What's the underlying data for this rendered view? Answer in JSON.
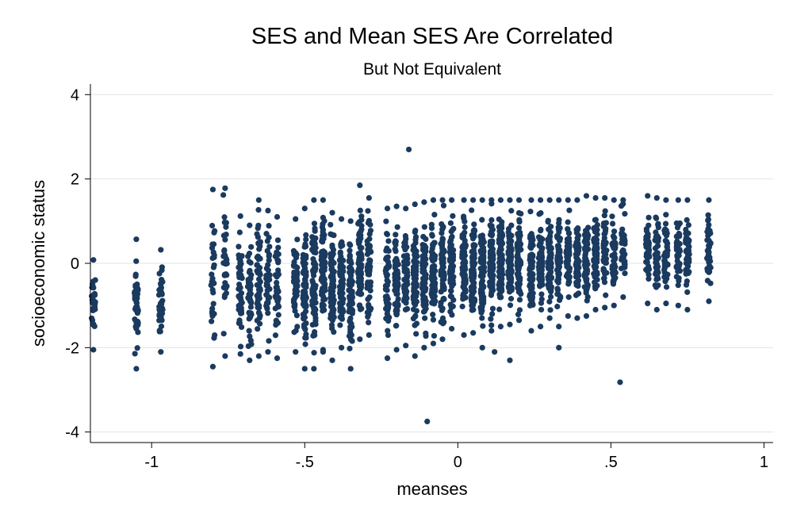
{
  "chart_data": {
    "type": "scatter",
    "title": "SES and Mean SES Are Correlated",
    "subtitle": "But Not Equivalent",
    "xlabel": "meanses",
    "ylabel": "socioeconomic status",
    "xlim": [
      -1.2,
      1.03
    ],
    "ylim": [
      -4.25,
      4.25
    ],
    "xticks": [
      -1,
      -0.5,
      0,
      0.5,
      1
    ],
    "xtick_labels": [
      "-1",
      "-.5",
      "0",
      ".5",
      "1"
    ],
    "yticks": [
      -4,
      -2,
      0,
      2,
      4
    ],
    "ytick_labels": [
      "-4",
      "-2",
      "0",
      "2",
      "4"
    ],
    "grid": "horizontal",
    "legend": "none",
    "marker_color": "#1a3a5f",
    "clusters": [
      {
        "x": -1.19,
        "ymin": -2.05,
        "ymax": 0.08,
        "n": 30
      },
      {
        "x": -1.05,
        "ymin": -2.5,
        "ymax": 0.57,
        "n": 40
      },
      {
        "x": -0.97,
        "ymin": -2.1,
        "ymax": 0.32,
        "n": 38
      },
      {
        "x": -0.8,
        "ymin": -2.45,
        "ymax": 1.75,
        "n": 30
      },
      {
        "x": -0.76,
        "ymin": -2.2,
        "ymax": 1.78,
        "n": 34
      },
      {
        "x": -0.71,
        "ymin": -2.15,
        "ymax": 1.12,
        "n": 45
      },
      {
        "x": -0.68,
        "ymin": -2.3,
        "ymax": 0.9,
        "n": 45
      },
      {
        "x": -0.65,
        "ymin": -2.2,
        "ymax": 1.5,
        "n": 48
      },
      {
        "x": -0.62,
        "ymin": -2.1,
        "ymax": 1.25,
        "n": 40
      },
      {
        "x": -0.59,
        "ymin": -2.25,
        "ymax": 1.1,
        "n": 38
      },
      {
        "x": -0.53,
        "ymin": -2.1,
        "ymax": 1.05,
        "n": 50
      },
      {
        "x": -0.5,
        "ymin": -2.5,
        "ymax": 1.3,
        "n": 70
      },
      {
        "x": -0.47,
        "ymin": -2.5,
        "ymax": 1.5,
        "n": 75
      },
      {
        "x": -0.44,
        "ymin": -2.05,
        "ymax": 1.5,
        "n": 75
      },
      {
        "x": -0.41,
        "ymin": -2.3,
        "ymax": 1.2,
        "n": 70
      },
      {
        "x": -0.38,
        "ymin": -2.0,
        "ymax": 1.05,
        "n": 65
      },
      {
        "x": -0.35,
        "ymin": -2.5,
        "ymax": 1.0,
        "n": 70
      },
      {
        "x": -0.32,
        "ymin": -1.8,
        "ymax": 1.85,
        "n": 70
      },
      {
        "x": -0.29,
        "ymin": -1.7,
        "ymax": 1.55,
        "n": 60
      },
      {
        "x": -0.23,
        "ymin": -2.25,
        "ymax": 1.3,
        "n": 55
      },
      {
        "x": -0.2,
        "ymin": -2.05,
        "ymax": 1.35,
        "n": 60
      },
      {
        "x": -0.17,
        "ymin": -1.95,
        "ymax": 1.3,
        "n": 60
      },
      {
        "x": -0.14,
        "ymin": -2.2,
        "ymax": 1.4,
        "n": 70
      },
      {
        "x": -0.11,
        "ymin": -2.0,
        "ymax": 1.45,
        "n": 75
      },
      {
        "x": -0.08,
        "ymin": -1.9,
        "ymax": 1.5,
        "n": 75
      },
      {
        "x": -0.05,
        "ymin": -1.8,
        "ymax": 1.5,
        "n": 75
      },
      {
        "x": -0.02,
        "ymin": -1.55,
        "ymax": 1.5,
        "n": 70
      },
      {
        "x": 0.02,
        "ymin": -1.7,
        "ymax": 1.5,
        "n": 80
      },
      {
        "x": 0.05,
        "ymin": -1.65,
        "ymax": 1.5,
        "n": 80
      },
      {
        "x": 0.08,
        "ymin": -2.0,
        "ymax": 1.5,
        "n": 90
      },
      {
        "x": 0.11,
        "ymin": -1.6,
        "ymax": 1.5,
        "n": 90
      },
      {
        "x": 0.14,
        "ymin": -1.5,
        "ymax": 1.5,
        "n": 90
      },
      {
        "x": 0.17,
        "ymin": -1.45,
        "ymax": 1.5,
        "n": 80
      },
      {
        "x": 0.2,
        "ymin": -1.35,
        "ymax": 1.5,
        "n": 70
      },
      {
        "x": 0.24,
        "ymin": -1.6,
        "ymax": 1.5,
        "n": 70
      },
      {
        "x": 0.27,
        "ymin": -1.5,
        "ymax": 1.5,
        "n": 70
      },
      {
        "x": 0.3,
        "ymin": -1.3,
        "ymax": 1.5,
        "n": 60
      },
      {
        "x": 0.33,
        "ymin": -1.5,
        "ymax": 1.5,
        "n": 60
      },
      {
        "x": 0.36,
        "ymin": -1.25,
        "ymax": 1.5,
        "n": 60
      },
      {
        "x": 0.39,
        "ymin": -1.3,
        "ymax": 1.5,
        "n": 55
      },
      {
        "x": 0.42,
        "ymin": -1.25,
        "ymax": 1.6,
        "n": 60
      },
      {
        "x": 0.45,
        "ymin": -1.1,
        "ymax": 1.55,
        "n": 55
      },
      {
        "x": 0.48,
        "ymin": -1.05,
        "ymax": 1.55,
        "n": 45
      },
      {
        "x": 0.51,
        "ymin": -1.0,
        "ymax": 1.5,
        "n": 40
      },
      {
        "x": 0.54,
        "ymin": -0.8,
        "ymax": 1.5,
        "n": 40
      },
      {
        "x": 0.62,
        "ymin": -0.95,
        "ymax": 1.6,
        "n": 45
      },
      {
        "x": 0.65,
        "ymin": -1.1,
        "ymax": 1.55,
        "n": 45
      },
      {
        "x": 0.68,
        "ymin": -0.95,
        "ymax": 1.5,
        "n": 42
      },
      {
        "x": 0.72,
        "ymin": -1.0,
        "ymax": 1.5,
        "n": 42
      },
      {
        "x": 0.75,
        "ymin": -1.1,
        "ymax": 1.5,
        "n": 42
      },
      {
        "x": 0.82,
        "ymin": -0.9,
        "ymax": 1.5,
        "n": 40
      }
    ],
    "outliers": [
      {
        "x": -0.16,
        "y": 2.7
      },
      {
        "x": -0.1,
        "y": -3.75
      },
      {
        "x": 0.53,
        "y": -2.82
      },
      {
        "x": -0.44,
        "y": -2.1
      },
      {
        "x": 0.17,
        "y": -2.3
      },
      {
        "x": 0.12,
        "y": -2.1
      },
      {
        "x": 0.33,
        "y": -2.0
      }
    ]
  }
}
